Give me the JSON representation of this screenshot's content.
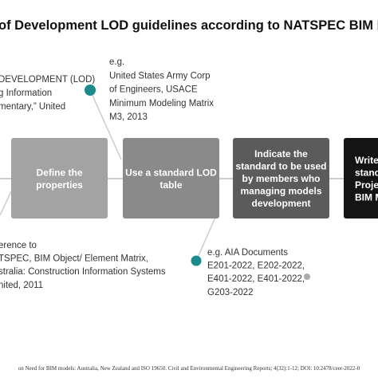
{
  "title": "of Development LOD guidelines according to NATSPEC BIM I",
  "notes": [
    {
      "lines": [
        "DEVELOPMENT (LOD)",
        "g Information",
        "mentary,” United"
      ]
    },
    {
      "lines": [
        "e.g.",
        "United States Army Corp",
        "of Engineers, USACE",
        "Minimum Modeling Matrix",
        "M3, 2013"
      ]
    },
    {
      "lines": [
        "erence to",
        "TSPEC, BIM Object/ Element Matrix,",
        "stralia: Construction Information Systems",
        "nited, 2011"
      ]
    },
    {
      "lines": [
        "e.g. AIA Documents",
        "E201-2022, E202-2022,",
        "E401-2022, E401-2022,",
        "G203-2022"
      ]
    }
  ],
  "steps": [
    {
      "lines": [
        "Define the",
        "properties"
      ]
    },
    {
      "lines": [
        "Use a standard LOD",
        "table"
      ]
    },
    {
      "lines": [
        "Indicate the",
        "standard to be used",
        "by members who",
        "managing models",
        "development"
      ]
    },
    {
      "lines": [
        "Write",
        "stand.",
        "Projec",
        "BIM M"
      ]
    }
  ],
  "footer": "on Need for BIM models: Australia, New Zealand and ISO 19650. Civil and Environmental Engineering Reports; 4(32):1-12; DOI: 10.2478/ceer-2022-0"
}
